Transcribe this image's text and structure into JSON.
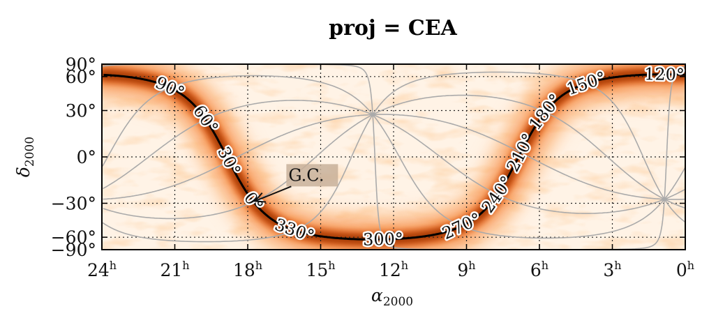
{
  "chart_data": {
    "type": "heatmap",
    "title": "proj = CEA",
    "xlabel": {
      "sym": "α",
      "sub": "2000"
    },
    "ylabel": {
      "sym": "δ",
      "sub": "2000"
    },
    "xlim": [
      24,
      0
    ],
    "ylim": [
      -90,
      90
    ],
    "projection": "cylindrical equal-area",
    "x_ticks": [
      {
        "value": 24,
        "num": "24",
        "unit": "h"
      },
      {
        "value": 21,
        "num": "21",
        "unit": "h"
      },
      {
        "value": 18,
        "num": "18",
        "unit": "h"
      },
      {
        "value": 15,
        "num": "15",
        "unit": "h"
      },
      {
        "value": 12,
        "num": "12",
        "unit": "h"
      },
      {
        "value": 9,
        "num": "9",
        "unit": "h"
      },
      {
        "value": 6,
        "num": "6",
        "unit": "h"
      },
      {
        "value": 3,
        "num": "3",
        "unit": "h"
      },
      {
        "value": 0,
        "num": "0",
        "unit": "h"
      }
    ],
    "y_ticks": [
      {
        "value": 90,
        "label": "90°"
      },
      {
        "value": 60,
        "label": "60°"
      },
      {
        "value": 30,
        "label": "30°"
      },
      {
        "value": 0,
        "label": "0°"
      },
      {
        "value": -30,
        "label": "−30°"
      },
      {
        "value": -60,
        "label": "−60°"
      },
      {
        "value": -90,
        "label": "−90°"
      }
    ],
    "galactic_plane_labels": [
      {
        "lon": 90,
        "label": "90°"
      },
      {
        "lon": 60,
        "label": "60°"
      },
      {
        "lon": 30,
        "label": "30°"
      },
      {
        "lon": 0,
        "label": "0°"
      },
      {
        "lon": 330,
        "label": "330°"
      },
      {
        "lon": 300,
        "label": "300°"
      },
      {
        "lon": 270,
        "label": "270°"
      },
      {
        "lon": 240,
        "label": "240°"
      },
      {
        "lon": 210,
        "label": "210°"
      },
      {
        "lon": 180,
        "label": "180°"
      },
      {
        "lon": 150,
        "label": "150°"
      },
      {
        "lon": 120,
        "label": "120°"
      }
    ],
    "annotation": {
      "text": "G.C.",
      "ra_hours": 17.76,
      "dec": -28.94
    },
    "grid": true,
    "colormap": [
      "#fff7ec",
      "#fdd49e",
      "#fc8d59",
      "#d7301f",
      "#7f0000",
      "#000000"
    ]
  }
}
